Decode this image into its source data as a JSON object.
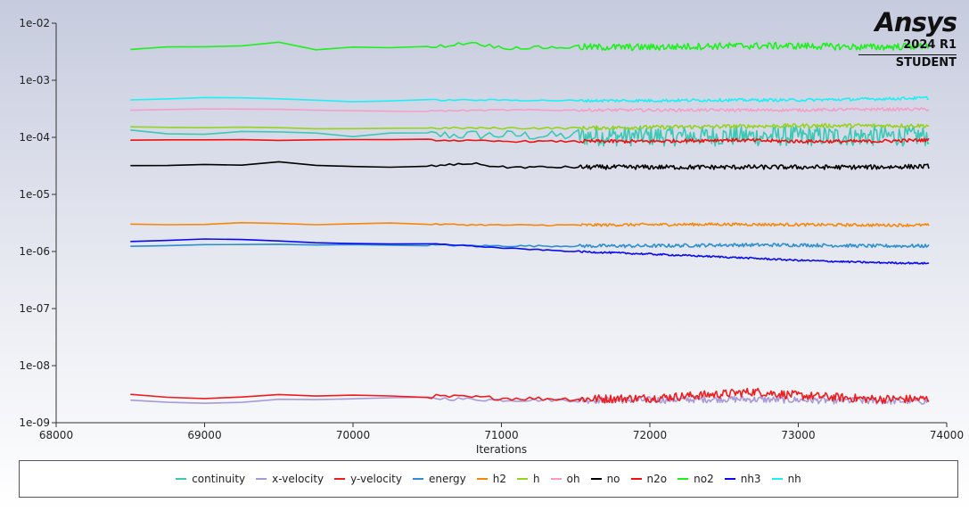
{
  "logo": {
    "brand": "Ansys",
    "version": "2024 R1",
    "edition": "STUDENT"
  },
  "chart_data": {
    "type": "line",
    "title": "",
    "xlabel": "Iterations",
    "ylabel": "",
    "xlim": [
      68000,
      74000
    ],
    "ylim": [
      1e-09,
      0.01
    ],
    "yscale": "log",
    "x_ticks": [
      68000,
      69000,
      70000,
      71000,
      72000,
      73000,
      74000
    ],
    "x_tick_labels": [
      "68000",
      "69000",
      "70000",
      "71000",
      "72000",
      "73000",
      "74000"
    ],
    "y_ticks": [
      1e-09,
      1e-08,
      1e-07,
      1e-06,
      1e-05,
      0.0001,
      0.001,
      0.01
    ],
    "y_tick_labels": [
      "1e-09",
      "1e-08",
      "1e-07",
      "1e-06",
      "1e-05",
      "1e-04",
      "1e-03",
      "1e-02"
    ],
    "grid": false,
    "legend_position": "bottom",
    "series": [
      {
        "name": "continuity",
        "color": "#3cc8b4",
        "noise": 0.35,
        "x": [
          68500,
          69000,
          69500,
          70000,
          70500,
          71000,
          71500,
          72000,
          72500,
          73000,
          73500,
          73880
        ],
        "y": [
          0.00013,
          0.00011,
          0.00012,
          0.00011,
          0.00011,
          0.00011,
          0.000105,
          0.000105,
          0.000105,
          0.000105,
          0.000105,
          0.000105
        ]
      },
      {
        "name": "x-velocity",
        "color": "#a89ad8",
        "noise": 0.12,
        "x": [
          68500,
          69000,
          69500,
          70000,
          70500,
          71000,
          71500,
          72000,
          72500,
          73000,
          73500,
          73880
        ],
        "y": [
          2.4e-09,
          2.2e-09,
          2.5e-09,
          2.6e-09,
          2.7e-09,
          2.5e-09,
          2.5e-09,
          2.5e-09,
          2.6e-09,
          2.5e-09,
          2.4e-09,
          2.4e-09
        ]
      },
      {
        "name": "y-velocity",
        "color": "#ee1c1c",
        "noise": 0.15,
        "x": [
          68500,
          69000,
          69500,
          70000,
          70500,
          71000,
          71500,
          72000,
          72500,
          72700,
          73000,
          73500,
          73880
        ],
        "y": [
          3.1e-09,
          2.6e-09,
          3e-09,
          3e-09,
          2.9e-09,
          2.7e-09,
          2.6e-09,
          2.7e-09,
          3.2e-09,
          3.5e-09,
          3e-09,
          2.6e-09,
          2.6e-09
        ]
      },
      {
        "name": "energy",
        "color": "#2c8fd0",
        "noise": 0.06,
        "x": [
          68500,
          69000,
          69500,
          70000,
          70500,
          71000,
          71500,
          72000,
          72500,
          73000,
          73500,
          73880
        ],
        "y": [
          1.25e-06,
          1.3e-06,
          1.35e-06,
          1.3e-06,
          1.3e-06,
          1.25e-06,
          1.25e-06,
          1.25e-06,
          1.3e-06,
          1.3e-06,
          1.25e-06,
          1.25e-06
        ]
      },
      {
        "name": "h2",
        "color": "#f7870c",
        "noise": 0.05,
        "x": [
          68500,
          69000,
          69300,
          69800,
          70200,
          70500,
          71000,
          71500,
          72000,
          72500,
          73000,
          73500,
          73880
        ],
        "y": [
          3e-06,
          2.95e-06,
          3.3e-06,
          2.9e-06,
          3.2e-06,
          3e-06,
          2.9e-06,
          2.9e-06,
          2.95e-06,
          3e-06,
          2.95e-06,
          2.9e-06,
          2.9e-06
        ]
      },
      {
        "name": "h",
        "color": "#96d21e",
        "noise": 0.07,
        "x": [
          68500,
          69000,
          69300,
          69800,
          70200,
          70500,
          71000,
          71500,
          72000,
          72500,
          73000,
          73500,
          73880
        ],
        "y": [
          0.00015,
          0.000145,
          0.000155,
          0.00014,
          0.000145,
          0.000145,
          0.000145,
          0.000145,
          0.00015,
          0.000155,
          0.00016,
          0.00016,
          0.00016
        ]
      },
      {
        "name": "oh",
        "color": "#f59fc8",
        "noise": 0.05,
        "x": [
          68500,
          69000,
          69500,
          70000,
          70500,
          71000,
          71500,
          72000,
          72500,
          73000,
          73500,
          73880
        ],
        "y": [
          0.0003,
          0.00031,
          0.00031,
          0.00029,
          0.00029,
          0.0003,
          0.0003,
          0.0003,
          0.0003,
          0.0003,
          0.00031,
          0.00031
        ]
      },
      {
        "name": "no",
        "color": "#000000",
        "noise": 0.08,
        "x": [
          68500,
          69000,
          69300,
          69500,
          69800,
          70200,
          70500,
          70800,
          71000,
          71500,
          72000,
          72500,
          73000,
          73500,
          73880
        ],
        "y": [
          3.2e-05,
          3.3e-05,
          3.2e-05,
          3.7e-05,
          3.1e-05,
          3e-05,
          3.1e-05,
          3.5e-05,
          3e-05,
          3e-05,
          3e-05,
          3e-05,
          3e-05,
          3e-05,
          3.1e-05
        ]
      },
      {
        "name": "n2o",
        "color": "#f01010",
        "noise": 0.06,
        "x": [
          68500,
          69000,
          69500,
          70000,
          70500,
          71000,
          71500,
          72000,
          72500,
          73000,
          73500,
          73880
        ],
        "y": [
          9e-05,
          9e-05,
          9e-05,
          9e-05,
          9e-05,
          8.5e-05,
          8.5e-05,
          8.5e-05,
          9e-05,
          8.5e-05,
          8.5e-05,
          9e-05
        ]
      },
      {
        "name": "no2",
        "color": "#1ef01e",
        "noise": 0.12,
        "x": [
          68500,
          69000,
          69300,
          69500,
          69800,
          70000,
          70500,
          70800,
          71000,
          71500,
          72000,
          72500,
          73000,
          73500,
          73880
        ],
        "y": [
          0.0036,
          0.004,
          0.0039,
          0.0048,
          0.0033,
          0.0038,
          0.0037,
          0.0046,
          0.0037,
          0.0038,
          0.0038,
          0.004,
          0.004,
          0.0038,
          0.004
        ]
      },
      {
        "name": "nh3",
        "color": "#0a0af0",
        "noise": 0.03,
        "x": [
          68500,
          69000,
          69300,
          69800,
          70200,
          70600,
          71000,
          71500,
          72000,
          72500,
          73000,
          73500,
          73880
        ],
        "y": [
          1.5e-06,
          1.65e-06,
          1.6e-06,
          1.4e-06,
          1.35e-06,
          1.35e-06,
          1.15e-06,
          1e-06,
          9e-07,
          8e-07,
          7e-07,
          6.4e-07,
          6.2e-07
        ]
      },
      {
        "name": "nh",
        "color": "#1ef0f5",
        "noise": 0.05,
        "x": [
          68500,
          69000,
          69500,
          70000,
          70500,
          71000,
          71500,
          72000,
          72500,
          73000,
          73500,
          73880
        ],
        "y": [
          0.00045,
          0.0005,
          0.00048,
          0.00042,
          0.00045,
          0.00045,
          0.00044,
          0.00044,
          0.00045,
          0.00045,
          0.00047,
          0.00049
        ]
      }
    ]
  }
}
